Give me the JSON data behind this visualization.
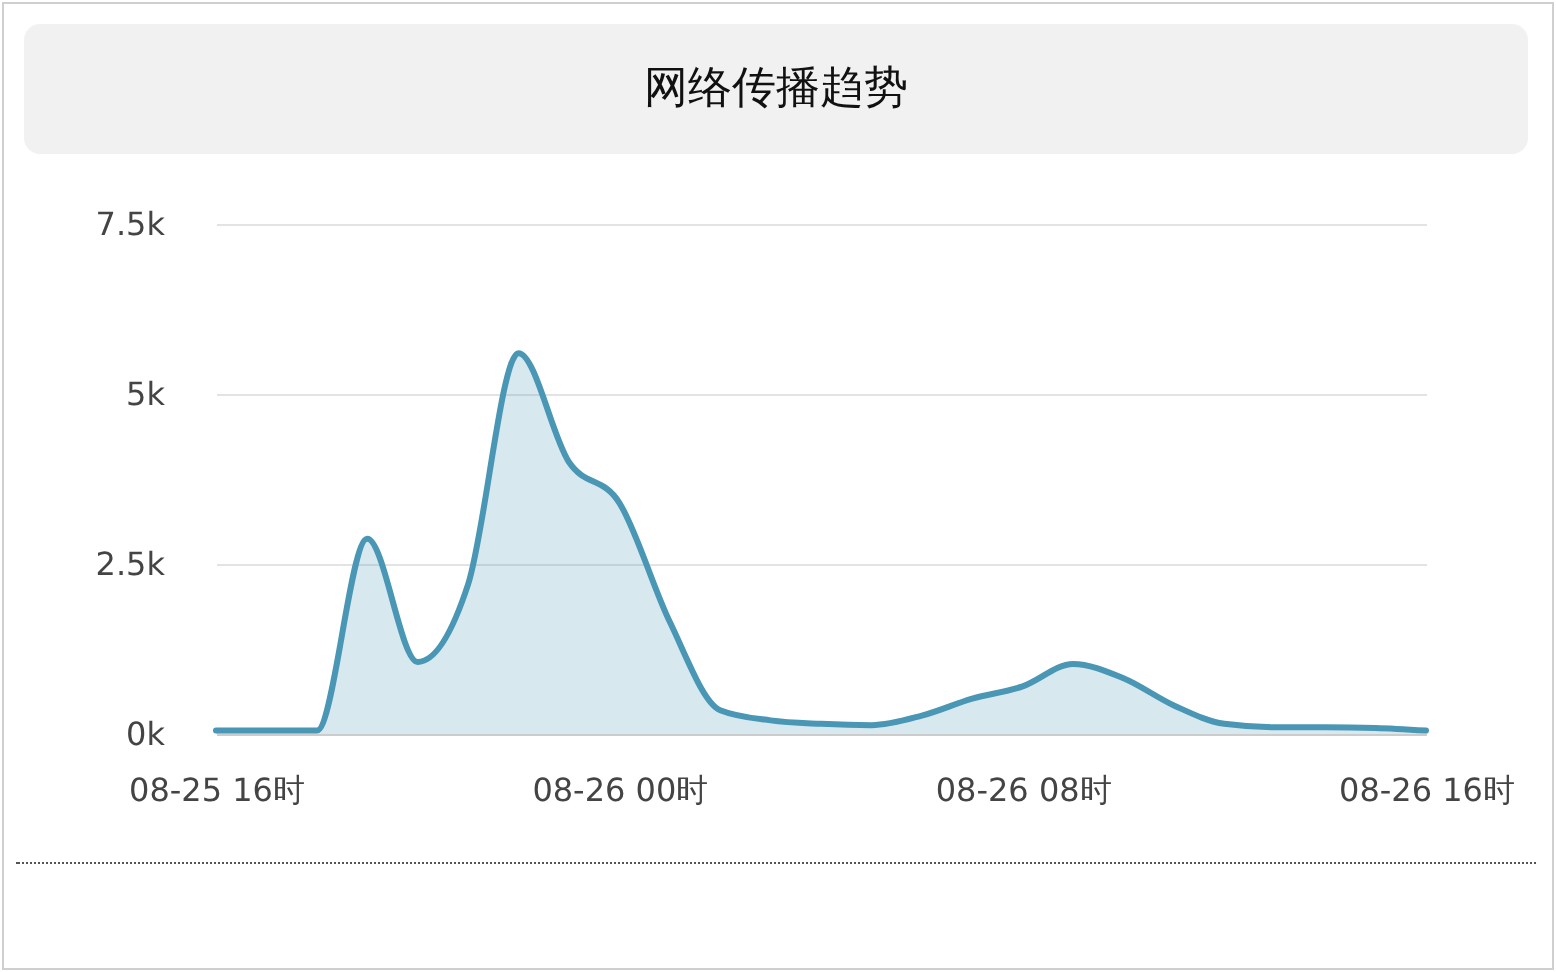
{
  "chart_data": {
    "type": "area",
    "title": "网络传播趋势",
    "categories": [
      "08-25 16时",
      null,
      null,
      null,
      null,
      null,
      null,
      null,
      "08-26 00时",
      null,
      null,
      null,
      null,
      null,
      null,
      null,
      "08-26 08时",
      null,
      null,
      null,
      null,
      null,
      null,
      null,
      "08-26 16时"
    ],
    "series": [
      {
        "color": "#4a96b5",
        "values": [
          50,
          50,
          50,
          2870,
          1060,
          2200,
          5600,
          4000,
          3400,
          1650,
          350,
          200,
          150,
          130,
          270,
          520,
          700,
          1030,
          820,
          420,
          150,
          100,
          100,
          90,
          50
        ]
      }
    ],
    "ylim": [
      0,
      7500
    ],
    "yticks": [
      {
        "value": 0,
        "label": "0k"
      },
      {
        "value": 2500,
        "label": "2.5k"
      },
      {
        "value": 5000,
        "label": "5k"
      },
      {
        "value": 7500,
        "label": "7.5k"
      }
    ],
    "grid": "y",
    "marker": "none",
    "line_style": "solid"
  }
}
